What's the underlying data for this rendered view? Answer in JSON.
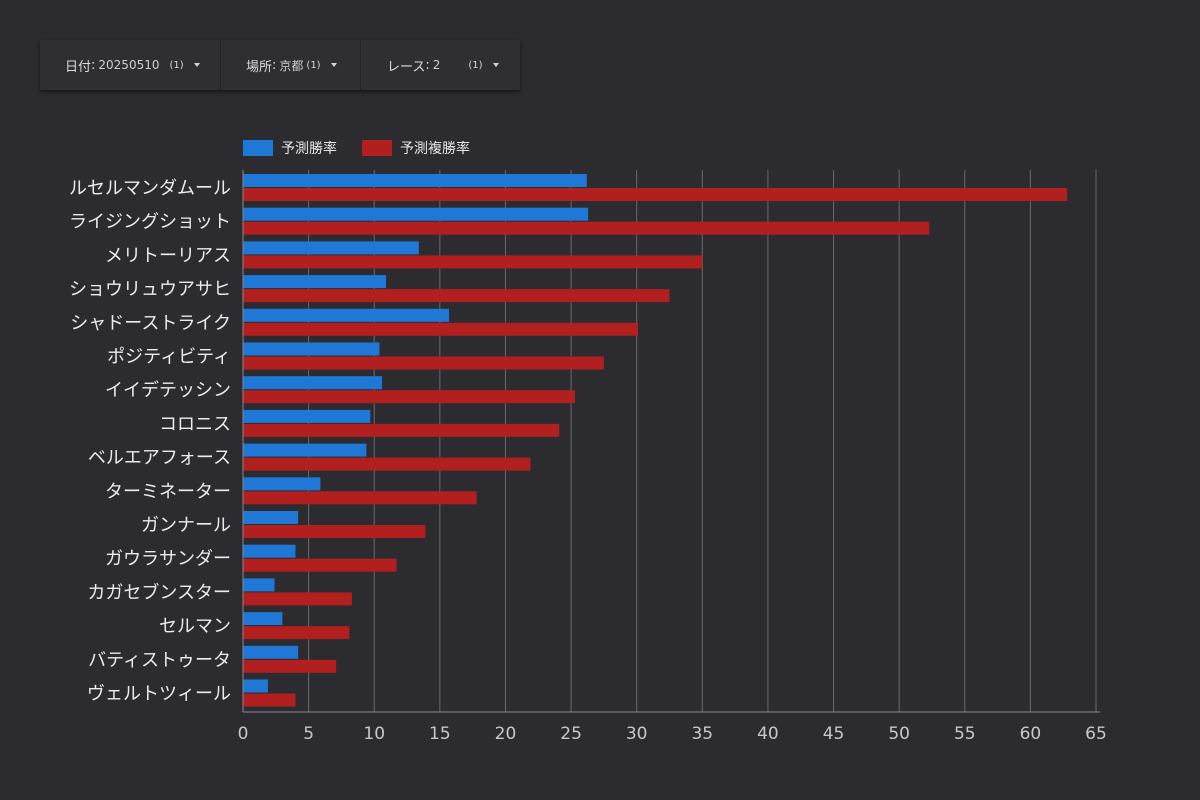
{
  "filters": {
    "date": {
      "label": "日付",
      "value": "20250510",
      "count": "(1)"
    },
    "place": {
      "label": "場所",
      "value": "京都",
      "count": "(1)"
    },
    "race": {
      "label": "レース",
      "value": "2",
      "count": "(1)"
    }
  },
  "colors": {
    "win": "#1f78d6",
    "place": "#b21f1f",
    "grid": "#6a6970",
    "axis": "#8a8990"
  },
  "chart_data": {
    "type": "bar",
    "orientation": "horizontal",
    "categories": [
      "ルセルマンダムール",
      "ライジングショット",
      "メリトーリアス",
      "ショウリュウアサヒ",
      "シャドーストライク",
      "ポジティビティ",
      "イイデテッシン",
      "コロニス",
      "ベルエアフォース",
      "ターミネーター",
      "ガンナール",
      "ガウラサンダー",
      "カガセブンスター",
      "セルマン",
      "バティストゥータ",
      "ヴェルトツィール"
    ],
    "series": [
      {
        "name": "予測勝率",
        "values": [
          26.2,
          26.3,
          13.4,
          10.9,
          15.7,
          10.4,
          10.6,
          9.7,
          9.4,
          5.9,
          4.2,
          4.0,
          2.4,
          3.0,
          4.2,
          1.9
        ]
      },
      {
        "name": "予測複勝率",
        "values": [
          62.8,
          52.3,
          35.0,
          32.5,
          30.1,
          27.5,
          25.3,
          24.1,
          21.9,
          17.8,
          13.9,
          11.7,
          8.3,
          8.1,
          7.1,
          4.0
        ]
      }
    ],
    "x_ticks": [
      "0",
      "5",
      "10",
      "15",
      "20",
      "25",
      "30",
      "35",
      "40",
      "45",
      "50",
      "55",
      "60",
      "65"
    ],
    "xlim": [
      0,
      65
    ],
    "legend": "top-left",
    "grid": true
  }
}
